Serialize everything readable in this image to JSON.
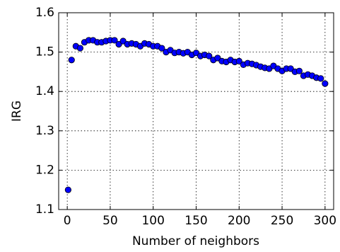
{
  "chart_data": {
    "type": "scatter",
    "x_label": "Number of neighbors",
    "y_label": "IRG",
    "x": [
      1,
      5,
      10,
      15,
      20,
      25,
      30,
      35,
      40,
      45,
      50,
      55,
      60,
      65,
      70,
      75,
      80,
      85,
      90,
      95,
      100,
      105,
      110,
      115,
      120,
      125,
      130,
      135,
      140,
      145,
      150,
      155,
      160,
      165,
      170,
      175,
      180,
      185,
      190,
      195,
      200,
      205,
      210,
      215,
      220,
      225,
      230,
      235,
      240,
      245,
      250,
      255,
      260,
      265,
      270,
      275,
      280,
      285,
      290,
      295,
      300
    ],
    "series": [
      {
        "name": "IRG",
        "color": "#0000ff",
        "values": [
          1.15,
          1.48,
          1.515,
          1.51,
          1.525,
          1.53,
          1.53,
          1.525,
          1.525,
          1.528,
          1.53,
          1.53,
          1.52,
          1.528,
          1.52,
          1.522,
          1.52,
          1.515,
          1.522,
          1.52,
          1.515,
          1.515,
          1.51,
          1.5,
          1.505,
          1.498,
          1.5,
          1.497,
          1.5,
          1.493,
          1.498,
          1.49,
          1.493,
          1.49,
          1.48,
          1.485,
          1.477,
          1.475,
          1.48,
          1.475,
          1.477,
          1.468,
          1.472,
          1.47,
          1.467,
          1.463,
          1.46,
          1.458,
          1.465,
          1.458,
          1.452,
          1.458,
          1.458,
          1.45,
          1.452,
          1.44,
          1.443,
          1.44,
          1.435,
          1.433,
          1.42
        ]
      }
    ],
    "xlim": [
      -10,
      310
    ],
    "ylim": [
      1.1,
      1.6
    ],
    "xticks": [
      0,
      50,
      100,
      150,
      200,
      250,
      300
    ],
    "yticks": [
      1.1,
      1.2,
      1.3,
      1.4,
      1.5,
      1.6
    ],
    "grid": true
  }
}
